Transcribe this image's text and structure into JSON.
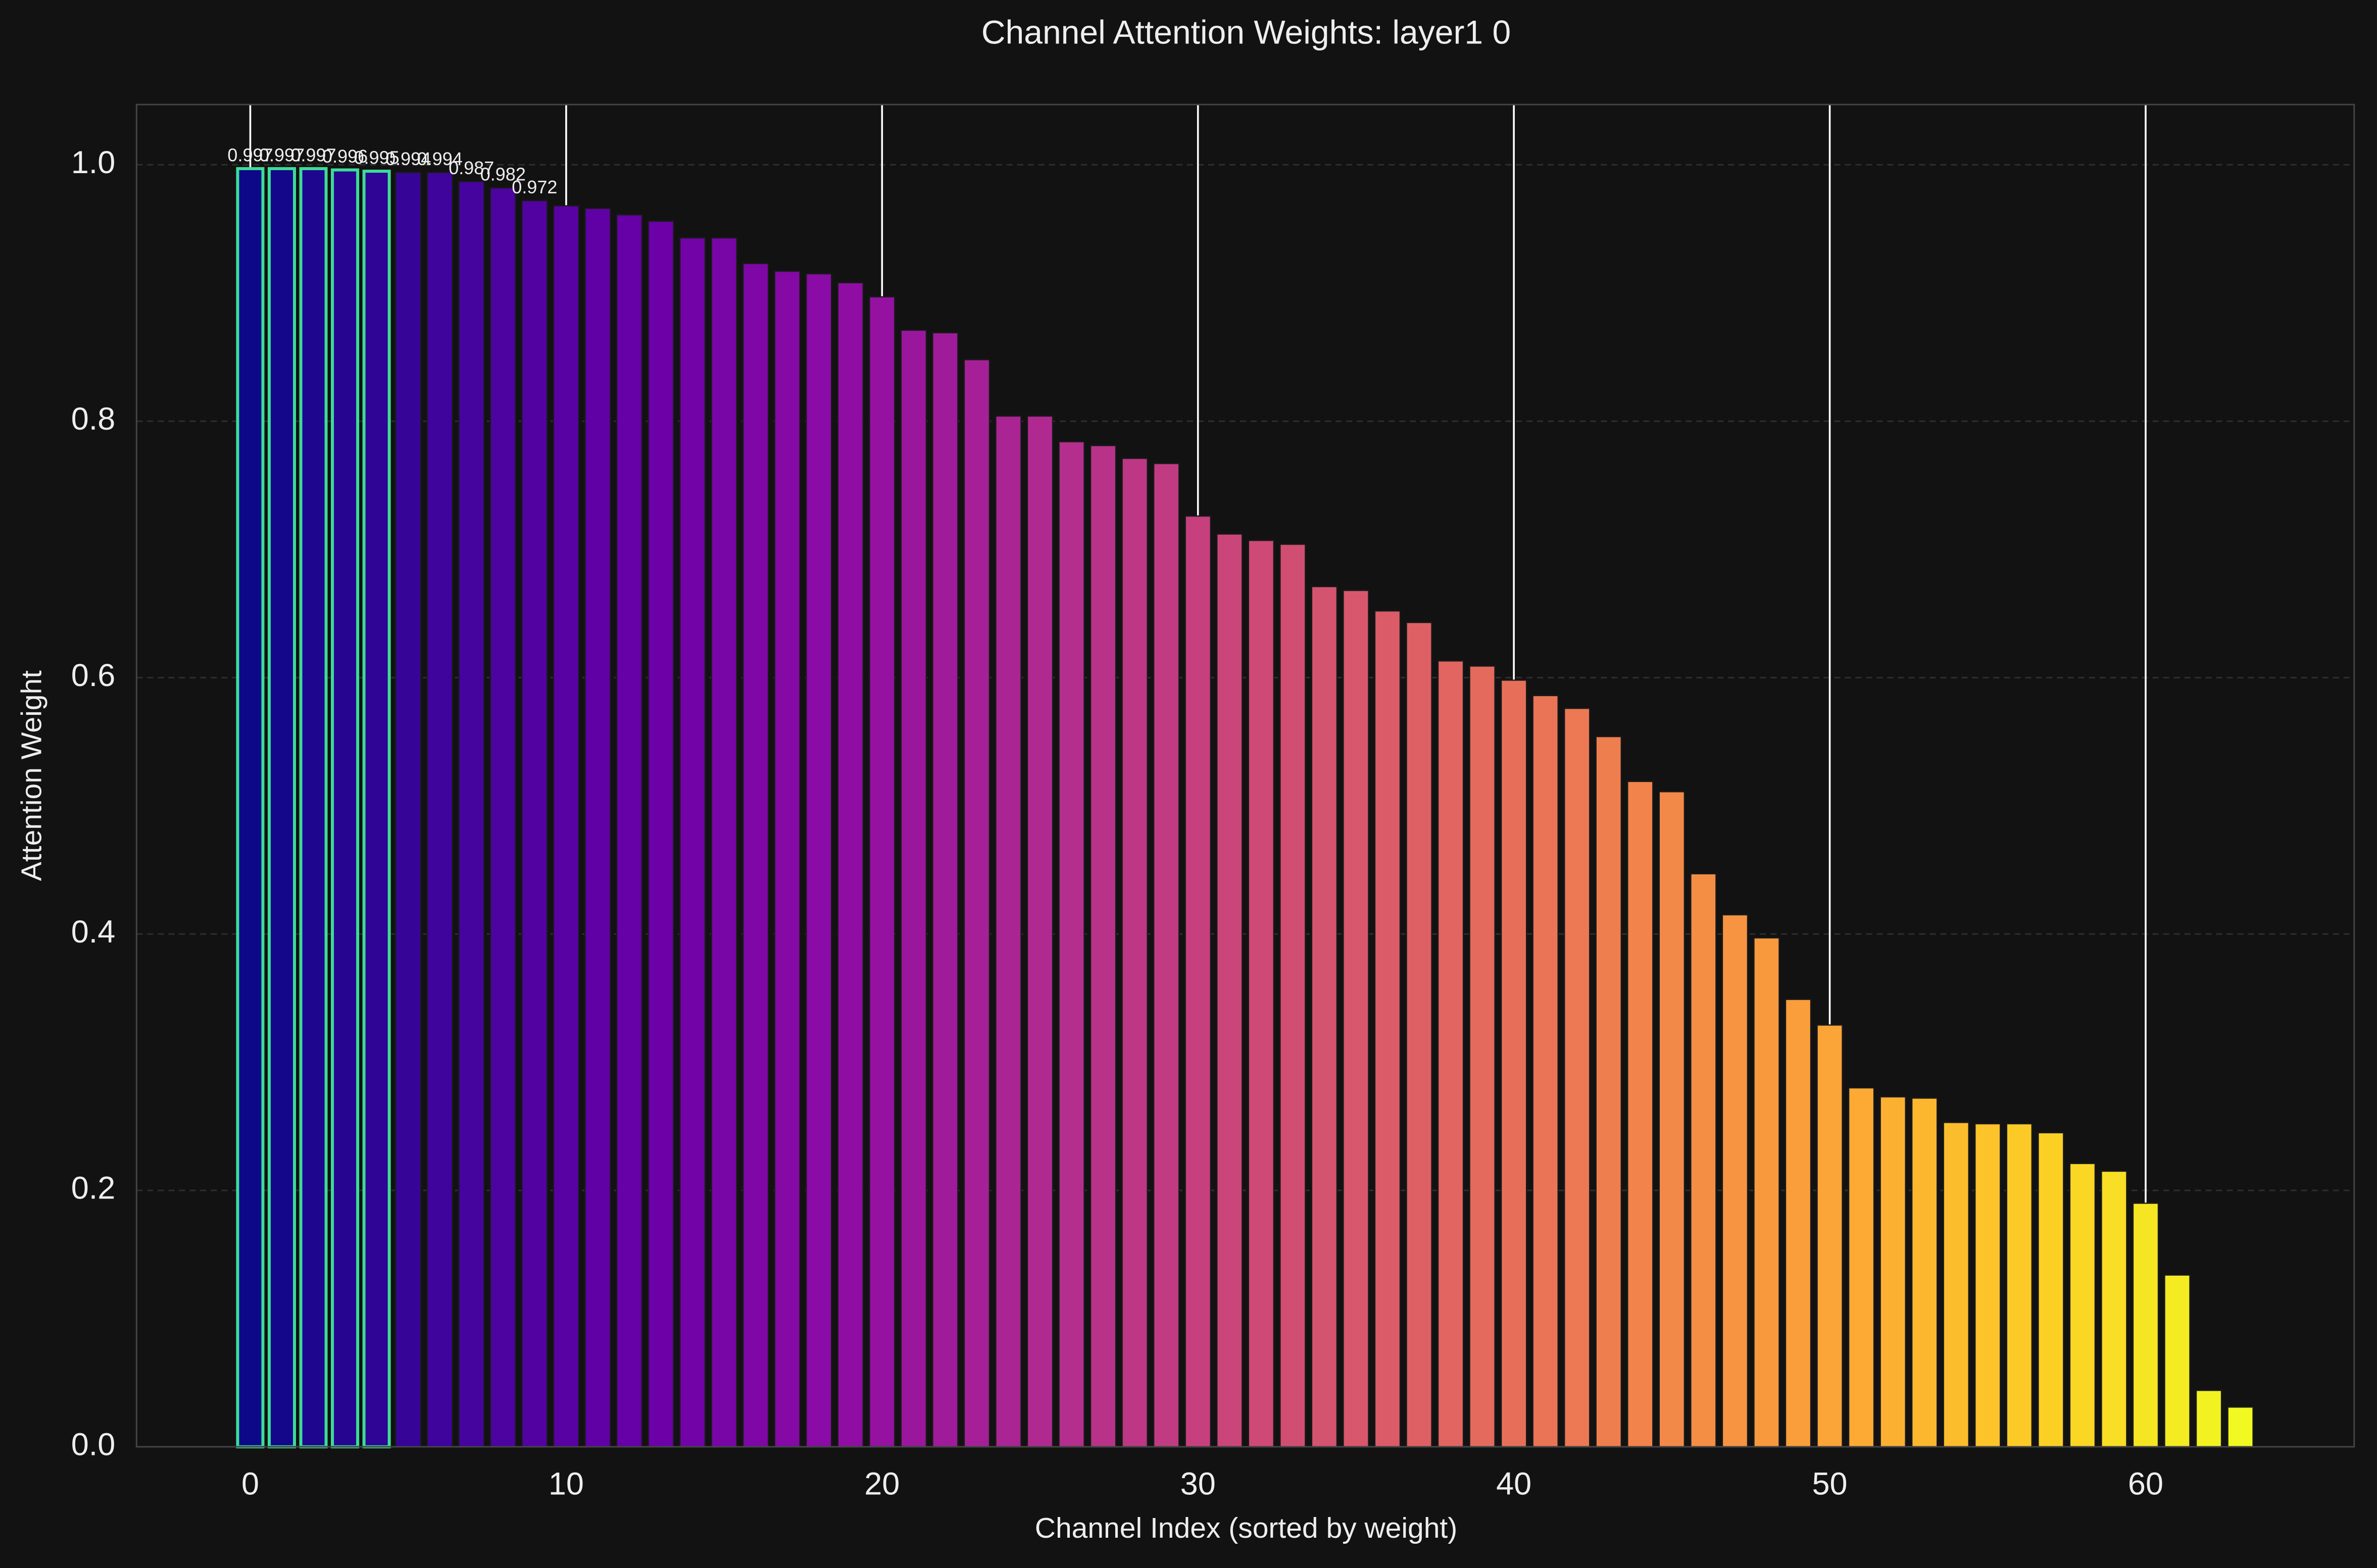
{
  "chart_data": {
    "type": "bar",
    "title": "Channel Attention Weights: layer1 0",
    "x_label": "Channel Index (sorted by weight)",
    "y_label": "Attention Weight",
    "x": [
      0,
      1,
      2,
      3,
      4,
      5,
      6,
      7,
      8,
      9,
      10,
      11,
      12,
      13,
      14,
      15,
      16,
      17,
      18,
      19,
      20,
      21,
      22,
      23,
      24,
      25,
      26,
      27,
      28,
      29,
      30,
      31,
      32,
      33,
      34,
      35,
      36,
      37,
      38,
      39,
      40,
      41,
      42,
      43,
      44,
      45,
      46,
      47,
      48,
      49,
      50,
      51,
      52,
      53,
      54,
      55,
      56,
      57,
      58,
      59,
      60,
      61,
      62,
      63
    ],
    "values": [
      0.997,
      0.997,
      0.997,
      0.996,
      0.995,
      0.994,
      0.994,
      0.987,
      0.982,
      0.972,
      0.968,
      0.966,
      0.961,
      0.956,
      0.943,
      0.943,
      0.923,
      0.917,
      0.915,
      0.908,
      0.897,
      0.871,
      0.869,
      0.848,
      0.804,
      0.804,
      0.784,
      0.781,
      0.771,
      0.767,
      0.726,
      0.712,
      0.707,
      0.704,
      0.671,
      0.668,
      0.652,
      0.643,
      0.613,
      0.609,
      0.598,
      0.586,
      0.576,
      0.554,
      0.519,
      0.511,
      0.447,
      0.415,
      0.397,
      0.349,
      0.329,
      0.28,
      0.273,
      0.272,
      0.253,
      0.252,
      0.252,
      0.245,
      0.221,
      0.215,
      0.19,
      0.134,
      0.044,
      0.031
    ],
    "value_labels": [
      "0.997",
      "0.997",
      "0.997",
      "0.996",
      "0.995",
      "0.994",
      "0.994",
      "0.987",
      "0.982",
      "0.972",
      null,
      null,
      null,
      null,
      null,
      null,
      null,
      null,
      null,
      null,
      null,
      null,
      null,
      null,
      null,
      null,
      null,
      null,
      null,
      null,
      null,
      null,
      null,
      null,
      null,
      null,
      null,
      null,
      null,
      null,
      null,
      null,
      null,
      null,
      null,
      null,
      null,
      null,
      null,
      null,
      null,
      null,
      null,
      null,
      null,
      null,
      null,
      null,
      null,
      null,
      null,
      null,
      null,
      null
    ],
    "colormap": "plasma",
    "highlighted": [
      0,
      1,
      2,
      3,
      4
    ],
    "highlight_edge_color": "#3ddc97",
    "xlim": [
      -3.6,
      66.6
    ],
    "ylim": [
      0,
      1.047
    ],
    "xticks": [
      0,
      10,
      20,
      30,
      40,
      50,
      60
    ],
    "yticks": [
      {
        "value": 0,
        "label": "0.0"
      },
      0.2,
      0.4,
      0.6,
      0.8,
      {
        "value": 1,
        "label": "1.0"
      }
    ],
    "grid": true
  }
}
